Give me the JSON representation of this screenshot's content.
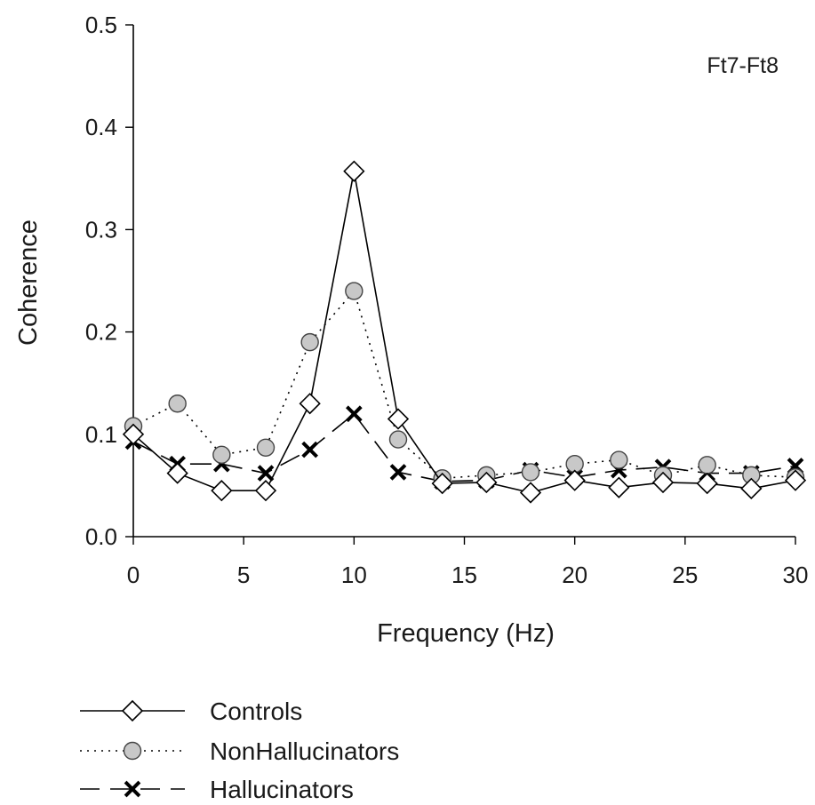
{
  "chart_data": {
    "type": "line",
    "panel_label": "Ft7-Ft8",
    "xlabel": "Frequency (Hz)",
    "ylabel": "Coherence",
    "xlim": [
      0,
      30
    ],
    "ylim": [
      0,
      0.5
    ],
    "x_ticks": [
      "0",
      "5",
      "10",
      "15",
      "20",
      "25",
      "30"
    ],
    "y_ticks": [
      "0.0",
      "0.1",
      "0.2",
      "0.3",
      "0.4",
      "0.5"
    ],
    "x": [
      0,
      2,
      4,
      6,
      8,
      10,
      12,
      14,
      16,
      18,
      20,
      22,
      24,
      26,
      28,
      30
    ],
    "grid": false,
    "legend_position": "bottom",
    "series": [
      {
        "name": "Controls",
        "line_style": "solid",
        "marker": "open-diamond",
        "color": "#000000",
        "fill": "#ffffff",
        "values": [
          0.1,
          0.062,
          0.045,
          0.045,
          0.13,
          0.357,
          0.115,
          0.052,
          0.053,
          0.043,
          0.055,
          0.048,
          0.053,
          0.052,
          0.047,
          0.055
        ]
      },
      {
        "name": "NonHallucinators",
        "line_style": "dotted",
        "marker": "gray-circle",
        "color": "#000000",
        "fill": "#c8c8c8",
        "values": [
          0.108,
          0.13,
          0.08,
          0.087,
          0.19,
          0.24,
          0.095,
          0.057,
          0.06,
          0.063,
          0.071,
          0.075,
          0.06,
          0.07,
          0.06,
          0.058
        ]
      },
      {
        "name": "Hallucinators",
        "line_style": "dashed",
        "marker": "x",
        "color": "#000000",
        "fill": "none",
        "values": [
          0.093,
          0.071,
          0.071,
          0.062,
          0.085,
          0.12,
          0.063,
          0.054,
          0.055,
          0.065,
          0.058,
          0.065,
          0.068,
          0.062,
          0.062,
          0.069
        ]
      }
    ]
  }
}
